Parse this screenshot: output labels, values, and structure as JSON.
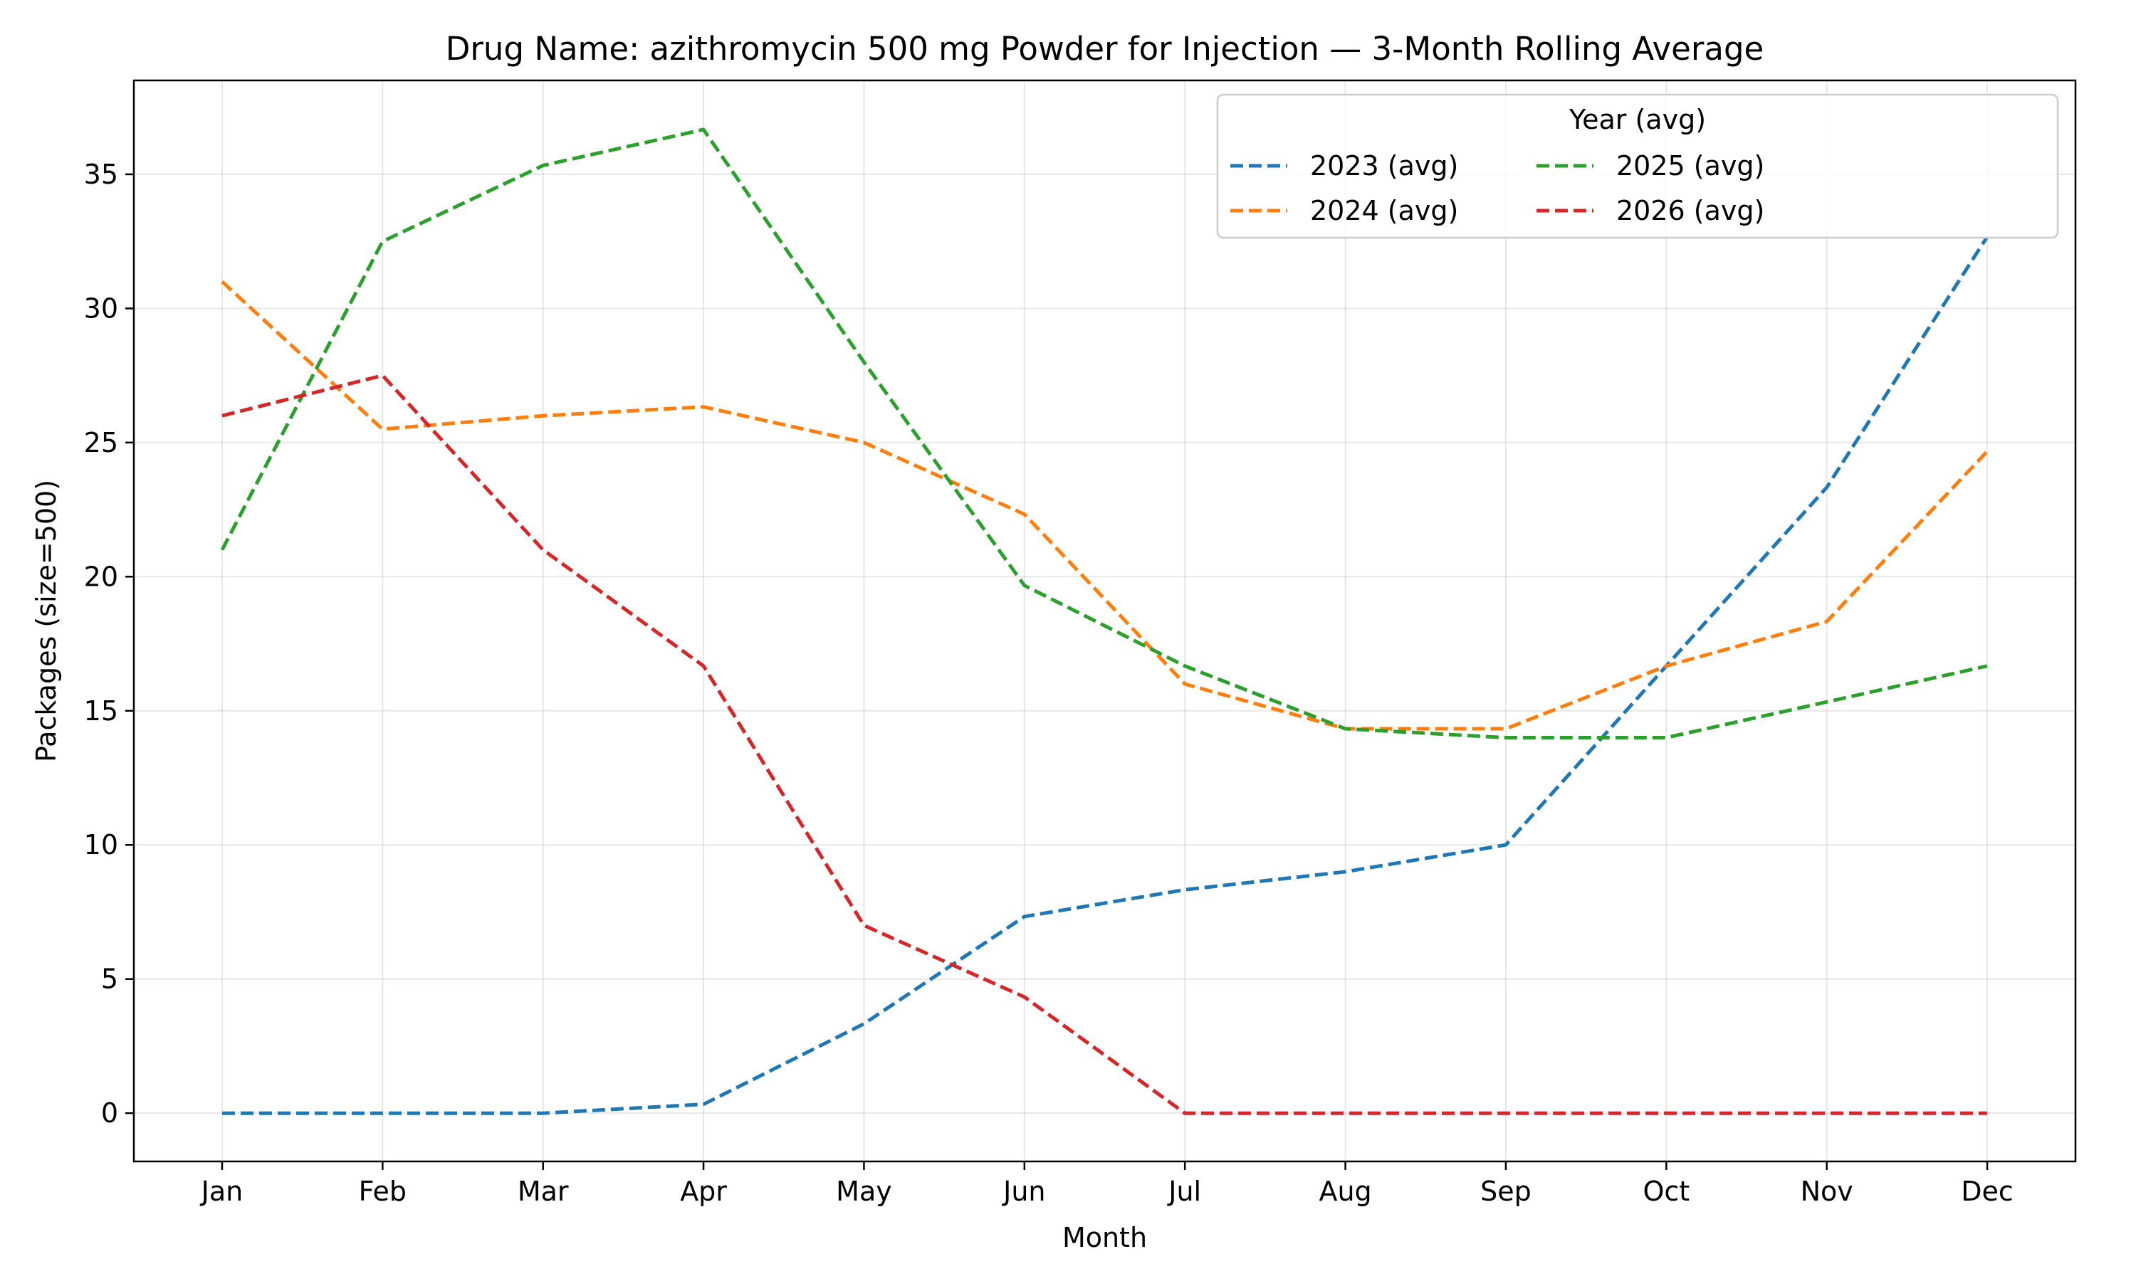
{
  "chart_data": {
    "type": "line",
    "title": "Drug Name: azithromycin 500 mg Powder for Injection — 3-Month Rolling Average",
    "xlabel": "Month",
    "ylabel": "Packages (size=500)",
    "categories": [
      "Jan",
      "Feb",
      "Mar",
      "Apr",
      "May",
      "Jun",
      "Jul",
      "Aug",
      "Sep",
      "Oct",
      "Nov",
      "Dec"
    ],
    "ylim": [
      -1.8,
      38.5
    ],
    "yticks": [
      0,
      5,
      10,
      15,
      20,
      25,
      30,
      35
    ],
    "grid": true,
    "legend": {
      "title": "Year (avg)",
      "placement": "top-right",
      "columns": 3
    },
    "series": [
      {
        "name": "2023 (avg)",
        "color": "#1f77b4",
        "style": "dashed",
        "values": [
          0,
          0,
          0,
          0.33,
          3.33,
          7.33,
          8.33,
          9.0,
          10.0,
          16.67,
          23.33,
          32.67
        ]
      },
      {
        "name": "2024 (avg)",
        "color": "#ff7f0e",
        "style": "dashed",
        "values": [
          31.0,
          25.5,
          26.0,
          26.33,
          25.0,
          22.33,
          16.0,
          14.33,
          14.33,
          16.67,
          18.33,
          24.67
        ]
      },
      {
        "name": "2025 (avg)",
        "color": "#2ca02c",
        "style": "dashed",
        "values": [
          21.0,
          32.5,
          35.33,
          36.67,
          28.0,
          19.67,
          16.67,
          14.33,
          14.0,
          14.0,
          15.33,
          16.67
        ]
      },
      {
        "name": "2026 (avg)",
        "color": "#d62728",
        "style": "dashed",
        "values": [
          26.0,
          27.5,
          21.0,
          16.67,
          7.0,
          4.33,
          0,
          0,
          0,
          0,
          0,
          0
        ]
      }
    ]
  }
}
